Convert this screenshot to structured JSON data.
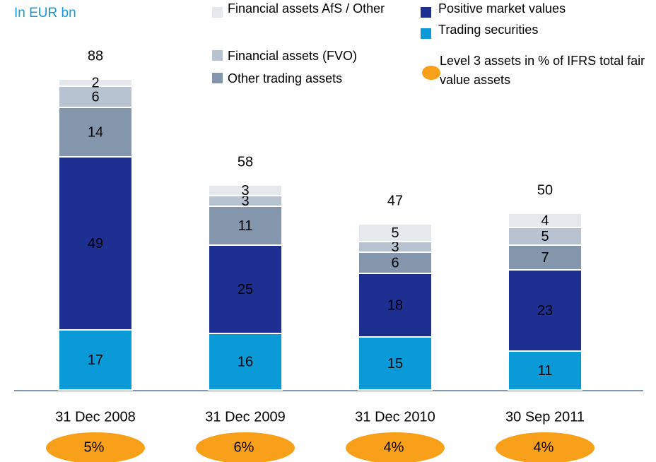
{
  "chart_data": {
    "type": "stacked_bar",
    "subtitle": "In EUR bn",
    "categories": [
      "31 Dec 2008",
      "31 Dec 2009",
      "31 Dec 2010",
      "30 Sep 2011"
    ],
    "series": [
      {
        "name": "Trading securities",
        "color": "#0a9ad7",
        "values": [
          17,
          16,
          15,
          11
        ]
      },
      {
        "name": "Positive market values",
        "color": "#1e2f92",
        "values": [
          49,
          25,
          18,
          23
        ]
      },
      {
        "name": "Other trading assets",
        "color": "#8396ab",
        "values": [
          14,
          11,
          6,
          7
        ]
      },
      {
        "name": "Financial assets (FVO)",
        "color": "#b7c3d1",
        "values": [
          6,
          3,
          3,
          5
        ]
      },
      {
        "name": "Financial assets AfS / Other",
        "color": "#e5e8ed",
        "values": [
          2,
          3,
          5,
          4
        ]
      }
    ],
    "totals": [
      88,
      58,
      47,
      50
    ],
    "level3": {
      "name": "Level 3 assets in % of IFRS total fair value assets",
      "color": "#f9a01b",
      "values": [
        5,
        6,
        4,
        4
      ],
      "value_labels": [
        "5%",
        "6%",
        "4%",
        "4%"
      ]
    }
  }
}
